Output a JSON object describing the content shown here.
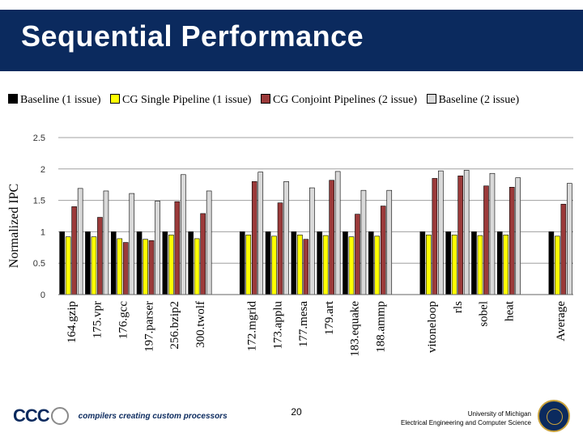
{
  "slide": {
    "title": "Sequential Performance",
    "page_number": "20",
    "footer_university": "University of Michigan",
    "footer_department": "Electrical Engineering and Computer Science",
    "logo_text": "CCC",
    "logo_tagline": "compilers creating custom processors"
  },
  "chart_data": {
    "type": "bar",
    "title": "",
    "xlabel": "",
    "ylabel": "Normalized IPC",
    "ylim": [
      0,
      2.5
    ],
    "yticks": [
      "0",
      "0.5",
      "1",
      "1.5",
      "2",
      "2.5"
    ],
    "grid": true,
    "legend_position": "top",
    "categories": [
      "164.gzip",
      "175.vpr",
      "176.gcc",
      "197.parser",
      "256.bzip2",
      "300.twolf",
      "172.mgrid",
      "173.applu",
      "177.mesa",
      "179.art",
      "183.equake",
      "188.ammp",
      "vitoneloop",
      "rls",
      "sobel",
      "heat",
      "Average"
    ],
    "groups": [
      [
        0,
        1,
        2,
        3,
        4,
        5
      ],
      [
        6,
        7,
        8,
        9,
        10,
        11
      ],
      [
        12,
        13,
        14,
        15
      ],
      [
        16
      ]
    ],
    "series": [
      {
        "name": "Baseline (1 issue)",
        "color": "#000000",
        "values": [
          1,
          1,
          1,
          1,
          1,
          1,
          1,
          1,
          1,
          1,
          1,
          1,
          1,
          1,
          1,
          1,
          1
        ]
      },
      {
        "name": "CG Single Pipeline (1 issue)",
        "color": "#ffff00",
        "values": [
          0.92,
          0.92,
          0.89,
          0.88,
          0.95,
          0.89,
          0.95,
          0.93,
          0.95,
          0.94,
          0.92,
          0.93,
          0.95,
          0.95,
          0.94,
          0.95,
          0.93
        ]
      },
      {
        "name": "CG Conjoint Pipelines (2 issue)",
        "color": "#9b3a3a",
        "values": [
          1.4,
          1.23,
          0.83,
          0.86,
          1.48,
          1.29,
          1.8,
          1.46,
          0.88,
          1.82,
          1.28,
          1.41,
          1.85,
          1.89,
          1.73,
          1.71,
          1.44
        ]
      },
      {
        "name": "Baseline (2 issue)",
        "color": "#d9d9d9",
        "values": [
          1.69,
          1.65,
          1.61,
          1.49,
          1.91,
          1.65,
          1.95,
          1.8,
          1.7,
          1.96,
          1.66,
          1.66,
          1.97,
          1.98,
          1.93,
          1.86,
          1.77
        ]
      }
    ]
  }
}
